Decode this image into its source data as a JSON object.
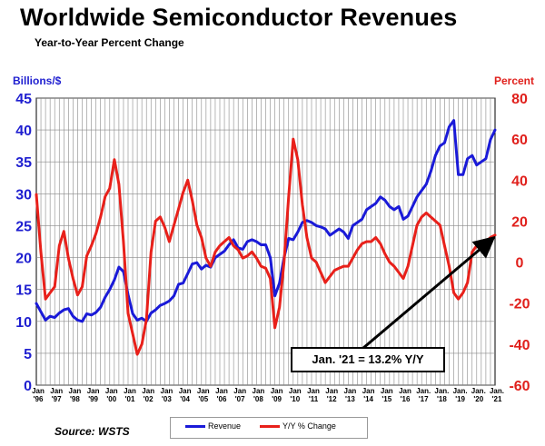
{
  "title": "Worldwide Semiconductor Revenues",
  "subtitle": "Year-to-Year Percent Change",
  "left_unit": "Billions/$",
  "right_unit": "Percent",
  "source": "Source: WSTS",
  "annotation": "Jan. '21 = 13.2% Y/Y",
  "colors": {
    "revenue": "#1a1ad8",
    "yy": "#e8201a",
    "left_axis": "#1f1fd0",
    "right_axis": "#e0201c",
    "grid": "#888888"
  },
  "chart_data": {
    "type": "line",
    "title": "Worldwide Semiconductor Revenues",
    "subtitle": "Year-to-Year Percent Change",
    "left_axis": {
      "label": "Billions/$",
      "ylim": [
        0,
        45
      ],
      "ticks": [
        0,
        5,
        10,
        15,
        20,
        25,
        30,
        35,
        40,
        45
      ]
    },
    "right_axis": {
      "label": "Percent",
      "ylim": [
        -60,
        80
      ],
      "ticks": [
        -60,
        -40,
        -20,
        0,
        20,
        40,
        60,
        80
      ]
    },
    "x_ticks": [
      {
        "line1": "Jan",
        "line2": "'96"
      },
      {
        "line1": "Jan",
        "line2": "'97"
      },
      {
        "line1": "Jan",
        "line2": "'98"
      },
      {
        "line1": "Jan",
        "line2": "'99"
      },
      {
        "line1": "Jan",
        "line2": "'00"
      },
      {
        "line1": "Jan",
        "line2": "'01"
      },
      {
        "line1": "Jan",
        "line2": "'02"
      },
      {
        "line1": "Jan",
        "line2": "'03"
      },
      {
        "line1": "Jan",
        "line2": "'04"
      },
      {
        "line1": "Jan",
        "line2": "'05"
      },
      {
        "line1": "Jan",
        "line2": "'06"
      },
      {
        "line1": "Jan",
        "line2": "'07"
      },
      {
        "line1": "Jan",
        "line2": "'08"
      },
      {
        "line1": "Jan",
        "line2": "'09"
      },
      {
        "line1": "Jan",
        "line2": "'10"
      },
      {
        "line1": "Jan",
        "line2": "'11"
      },
      {
        "line1": "Jan",
        "line2": "'12"
      },
      {
        "line1": "Jan",
        "line2": "'13"
      },
      {
        "line1": "Jan",
        "line2": "'14"
      },
      {
        "line1": "Jan",
        "line2": "'15"
      },
      {
        "line1": "Jan",
        "line2": "'16"
      },
      {
        "line1": "Jan.",
        "line2": "'17"
      },
      {
        "line1": "Jan.",
        "line2": "'18"
      },
      {
        "line1": "Jan.",
        "line2": "'19"
      },
      {
        "line1": "Jan.",
        "line2": "'20"
      },
      {
        "line1": "Jan.",
        "line2": "'21"
      }
    ],
    "grid": true,
    "legend": "bottom-center",
    "series": [
      {
        "name": "Revenue",
        "axis": "left",
        "x": [
          1996.0,
          1996.25,
          1996.5,
          1996.75,
          1997.0,
          1997.25,
          1997.5,
          1997.75,
          1998.0,
          1998.25,
          1998.5,
          1998.75,
          1999.0,
          1999.25,
          1999.5,
          1999.75,
          2000.0,
          2000.25,
          2000.5,
          2000.75,
          2001.0,
          2001.25,
          2001.5,
          2001.75,
          2002.0,
          2002.25,
          2002.5,
          2002.75,
          2003.0,
          2003.25,
          2003.5,
          2003.75,
          2004.0,
          2004.25,
          2004.5,
          2004.75,
          2005.0,
          2005.25,
          2005.5,
          2005.75,
          2006.0,
          2006.25,
          2006.5,
          2006.75,
          2007.0,
          2007.25,
          2007.5,
          2007.75,
          2008.0,
          2008.25,
          2008.5,
          2008.75,
          2009.0,
          2009.25,
          2009.5,
          2009.75,
          2010.0,
          2010.25,
          2010.5,
          2010.75,
          2011.0,
          2011.25,
          2011.5,
          2011.75,
          2012.0,
          2012.25,
          2012.5,
          2012.75,
          2013.0,
          2013.25,
          2013.5,
          2013.75,
          2014.0,
          2014.25,
          2014.5,
          2014.75,
          2015.0,
          2015.25,
          2015.5,
          2015.75,
          2016.0,
          2016.25,
          2016.5,
          2016.75,
          2017.0,
          2017.25,
          2017.5,
          2017.75,
          2018.0,
          2018.25,
          2018.5,
          2018.75,
          2019.0,
          2019.25,
          2019.5,
          2019.75,
          2020.0,
          2020.25,
          2020.5,
          2020.75,
          2021.0
        ],
        "values": [
          12.8,
          11.5,
          10.2,
          10.8,
          10.6,
          11.3,
          11.8,
          12.0,
          10.8,
          10.2,
          10.0,
          11.2,
          11.0,
          11.4,
          12.2,
          13.8,
          15.0,
          16.5,
          18.5,
          17.8,
          14.2,
          11.2,
          10.2,
          10.5,
          10.0,
          11.3,
          11.8,
          12.5,
          12.8,
          13.2,
          14.0,
          15.8,
          16.0,
          17.5,
          19.0,
          19.2,
          18.2,
          18.8,
          18.5,
          20.0,
          20.5,
          21.0,
          22.0,
          22.8,
          21.5,
          21.3,
          22.5,
          22.8,
          22.5,
          22.0,
          22.0,
          20.0,
          14.0,
          16.0,
          20.0,
          23.0,
          22.8,
          24.0,
          25.5,
          25.8,
          25.5,
          25.0,
          24.8,
          24.5,
          23.5,
          24.0,
          24.5,
          24.0,
          23.0,
          25.0,
          25.5,
          26.0,
          27.5,
          28.0,
          28.5,
          29.5,
          29.0,
          28.0,
          27.5,
          28.0,
          26.0,
          26.5,
          28.0,
          29.5,
          30.5,
          31.5,
          33.5,
          36.0,
          37.5,
          38.0,
          40.5,
          41.5,
          33.0,
          33.0,
          35.5,
          36.0,
          34.5,
          35.0,
          35.5,
          38.5,
          40.0
        ]
      },
      {
        "name": "Y/Y % Change",
        "axis": "right",
        "x": [
          1996.0,
          1996.25,
          1996.5,
          1996.75,
          1997.0,
          1997.25,
          1997.5,
          1997.75,
          1998.0,
          1998.25,
          1998.5,
          1998.75,
          1999.0,
          1999.25,
          1999.5,
          1999.75,
          2000.0,
          2000.25,
          2000.5,
          2000.75,
          2001.0,
          2001.25,
          2001.5,
          2001.75,
          2002.0,
          2002.25,
          2002.5,
          2002.75,
          2003.0,
          2003.25,
          2003.5,
          2003.75,
          2004.0,
          2004.25,
          2004.5,
          2004.75,
          2005.0,
          2005.25,
          2005.5,
          2005.75,
          2006.0,
          2006.25,
          2006.5,
          2006.75,
          2007.0,
          2007.25,
          2007.5,
          2007.75,
          2008.0,
          2008.25,
          2008.5,
          2008.75,
          2009.0,
          2009.25,
          2009.5,
          2009.75,
          2010.0,
          2010.25,
          2010.5,
          2010.75,
          2011.0,
          2011.25,
          2011.5,
          2011.75,
          2012.0,
          2012.25,
          2012.5,
          2012.75,
          2013.0,
          2013.25,
          2013.5,
          2013.75,
          2014.0,
          2014.25,
          2014.5,
          2014.75,
          2015.0,
          2015.25,
          2015.5,
          2015.75,
          2016.0,
          2016.25,
          2016.5,
          2016.75,
          2017.0,
          2017.25,
          2017.5,
          2017.75,
          2018.0,
          2018.25,
          2018.5,
          2018.75,
          2019.0,
          2019.25,
          2019.5,
          2019.75,
          2020.0,
          2020.25,
          2020.5,
          2020.75,
          2021.0
        ],
        "values": [
          33,
          5,
          -18,
          -15,
          -12,
          8,
          15,
          2,
          -8,
          -16,
          -12,
          3,
          8,
          14,
          22,
          32,
          36,
          50,
          38,
          10,
          -25,
          -35,
          -45,
          -40,
          -28,
          5,
          20,
          22,
          17,
          10,
          18,
          26,
          34,
          40,
          30,
          18,
          12,
          2,
          -2,
          5,
          8,
          10,
          12,
          8,
          6,
          2,
          3,
          5,
          2,
          -2,
          -3,
          -8,
          -32,
          -22,
          0,
          32,
          60,
          50,
          28,
          12,
          2,
          0,
          -5,
          -10,
          -7,
          -4,
          -3,
          -2,
          -2,
          2,
          6,
          9,
          10,
          10,
          12,
          9,
          4,
          0,
          -2,
          -5,
          -8,
          -2,
          8,
          18,
          22,
          24,
          22,
          20,
          18,
          8,
          -2,
          -15,
          -18,
          -15,
          -10,
          5,
          8,
          9,
          10,
          12,
          13.2
        ]
      }
    ]
  },
  "legend": [
    {
      "label": "Revenue"
    },
    {
      "label": "Y/Y % Change"
    }
  ]
}
